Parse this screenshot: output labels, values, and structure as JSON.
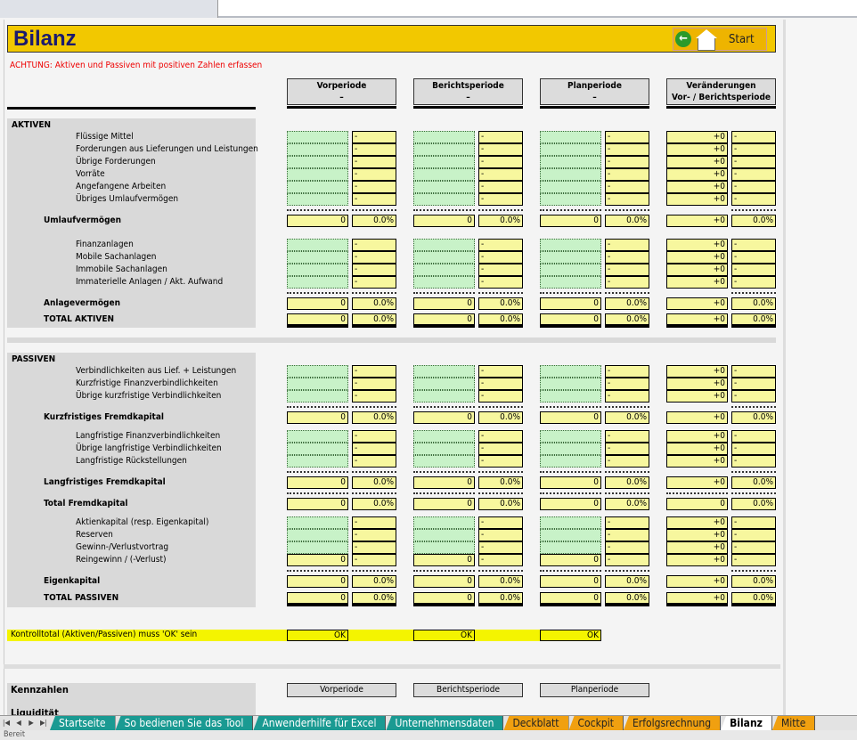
{
  "title": "Bilanz",
  "start_button": "Start",
  "warning": "ACHTUNG: Aktiven und Passiven mit positiven Zahlen erfassen",
  "columns": [
    {
      "line1": "Vorperiode",
      "line2": "–"
    },
    {
      "line1": "Berichtsperiode",
      "line2": "–"
    },
    {
      "line1": "Planperiode",
      "line2": "–"
    },
    {
      "line1": "Veränderungen",
      "line2": "Vor- / Berichtsperiode"
    }
  ],
  "rows": [
    {
      "label": "AKTIVEN",
      "type": "sec"
    },
    {
      "label": "Flüssige Mittel",
      "type": "item",
      "cols": [
        [
          "",
          "-"
        ],
        [
          "",
          "-"
        ],
        [
          "",
          "-"
        ],
        [
          "+0",
          "-"
        ]
      ]
    },
    {
      "label": "Forderungen aus Lieferungen und Leistungen",
      "type": "item",
      "cols": [
        [
          "",
          "-"
        ],
        [
          "",
          "-"
        ],
        [
          "",
          "-"
        ],
        [
          "+0",
          "-"
        ]
      ]
    },
    {
      "label": "Übrige Forderungen",
      "type": "item",
      "cols": [
        [
          "",
          "-"
        ],
        [
          "",
          "-"
        ],
        [
          "",
          "-"
        ],
        [
          "+0",
          "-"
        ]
      ]
    },
    {
      "label": "Vorräte",
      "type": "item",
      "cols": [
        [
          "",
          "-"
        ],
        [
          "",
          "-"
        ],
        [
          "",
          "-"
        ],
        [
          "+0",
          "-"
        ]
      ]
    },
    {
      "label": "Angefangene Arbeiten",
      "type": "item",
      "cols": [
        [
          "",
          "-"
        ],
        [
          "",
          "-"
        ],
        [
          "",
          "-"
        ],
        [
          "+0",
          "-"
        ]
      ]
    },
    {
      "label": "Übriges Umlaufvermögen",
      "type": "item",
      "cols": [
        [
          "",
          "-"
        ],
        [
          "",
          "-"
        ],
        [
          "",
          "-"
        ],
        [
          "+0",
          "-"
        ]
      ]
    },
    {
      "label": "Umlaufvermögen",
      "type": "sub",
      "cols": [
        [
          "0",
          "0.0%"
        ],
        [
          "0",
          "0.0%"
        ],
        [
          "0",
          "0.0%"
        ],
        [
          "+0",
          "0.0%"
        ]
      ]
    },
    {
      "label": "Finanzanlagen",
      "type": "item",
      "cols": [
        [
          "",
          "-"
        ],
        [
          "",
          "-"
        ],
        [
          "",
          "-"
        ],
        [
          "+0",
          "-"
        ]
      ]
    },
    {
      "label": "Mobile Sachanlagen",
      "type": "item",
      "cols": [
        [
          "",
          "-"
        ],
        [
          "",
          "-"
        ],
        [
          "",
          "-"
        ],
        [
          "+0",
          "-"
        ]
      ]
    },
    {
      "label": "Immobile Sachanlagen",
      "type": "item",
      "cols": [
        [
          "",
          "-"
        ],
        [
          "",
          "-"
        ],
        [
          "",
          "-"
        ],
        [
          "+0",
          "-"
        ]
      ]
    },
    {
      "label": "Immaterielle Anlagen / Akt. Aufwand",
      "type": "item",
      "cols": [
        [
          "",
          "-"
        ],
        [
          "",
          "-"
        ],
        [
          "",
          "-"
        ],
        [
          "+0",
          "-"
        ]
      ]
    },
    {
      "label": "Anlagevermögen",
      "type": "sub",
      "cols": [
        [
          "0",
          "0.0%"
        ],
        [
          "0",
          "0.0%"
        ],
        [
          "0",
          "0.0%"
        ],
        [
          "+0",
          "0.0%"
        ]
      ]
    },
    {
      "label": "TOTAL AKTIVEN",
      "type": "tot",
      "cols": [
        [
          "0",
          "0.0%"
        ],
        [
          "0",
          "0.0%"
        ],
        [
          "0",
          "0.0%"
        ],
        [
          "+0",
          "0.0%"
        ]
      ]
    },
    {
      "label": "PASSIVEN",
      "type": "sec"
    },
    {
      "label": "Verbindlichkeiten aus Lief. + Leistungen",
      "type": "item",
      "cols": [
        [
          "",
          "-"
        ],
        [
          "",
          "-"
        ],
        [
          "",
          "-"
        ],
        [
          "+0",
          "-"
        ]
      ]
    },
    {
      "label": "Kurzfristige Finanzverbindlichkeiten",
      "type": "item",
      "cols": [
        [
          "",
          "-"
        ],
        [
          "",
          "-"
        ],
        [
          "",
          "-"
        ],
        [
          "+0",
          "-"
        ]
      ]
    },
    {
      "label": "Übrige kurzfristige Verbindlichkeiten",
      "type": "item",
      "cols": [
        [
          "",
          "-"
        ],
        [
          "",
          "-"
        ],
        [
          "",
          "-"
        ],
        [
          "+0",
          "-"
        ]
      ]
    },
    {
      "label": "Kurzfristiges Fremdkapital",
      "type": "sub",
      "cols": [
        [
          "0",
          "0.0%"
        ],
        [
          "0",
          "0.0%"
        ],
        [
          "0",
          "0.0%"
        ],
        [
          "+0",
          "0.0%"
        ]
      ]
    },
    {
      "label": "Langfristige Finanzverbindlichkeiten",
      "type": "item",
      "cols": [
        [
          "",
          "-"
        ],
        [
          "",
          "-"
        ],
        [
          "",
          "-"
        ],
        [
          "+0",
          "-"
        ]
      ]
    },
    {
      "label": "Übrige langfristige Verbindlichkeiten",
      "type": "item",
      "cols": [
        [
          "",
          "-"
        ],
        [
          "",
          "-"
        ],
        [
          "",
          "-"
        ],
        [
          "+0",
          "-"
        ]
      ]
    },
    {
      "label": "Langfristige Rückstellungen",
      "type": "item",
      "cols": [
        [
          "",
          "-"
        ],
        [
          "",
          "-"
        ],
        [
          "",
          "-"
        ],
        [
          "+0",
          "-"
        ]
      ]
    },
    {
      "label": "Langfristiges Fremdkapital",
      "type": "sub",
      "cols": [
        [
          "0",
          "0.0%"
        ],
        [
          "0",
          "0.0%"
        ],
        [
          "0",
          "0.0%"
        ],
        [
          "+0",
          "0.0%"
        ]
      ]
    },
    {
      "label": "Total Fremdkapital",
      "type": "sub",
      "cols": [
        [
          "0",
          "0.0%"
        ],
        [
          "0",
          "0.0%"
        ],
        [
          "0",
          "0.0%"
        ],
        [
          "0",
          "0.0%"
        ]
      ]
    },
    {
      "label": "Aktienkapital (resp. Eigenkapital)",
      "type": "item",
      "cols": [
        [
          "",
          "-"
        ],
        [
          "",
          "-"
        ],
        [
          "",
          "-"
        ],
        [
          "+0",
          "-"
        ]
      ]
    },
    {
      "label": "Reserven",
      "type": "item",
      "cols": [
        [
          "",
          "-"
        ],
        [
          "",
          "-"
        ],
        [
          "",
          "-"
        ],
        [
          "+0",
          "-"
        ]
      ]
    },
    {
      "label": "Gewinn-/Verlustvortrag",
      "type": "item",
      "cols": [
        [
          "",
          "-"
        ],
        [
          "",
          "-"
        ],
        [
          "",
          "-"
        ],
        [
          "+0",
          "-"
        ]
      ]
    },
    {
      "label": "Reingewinn / (-Verlust)",
      "type": "item",
      "cols": [
        [
          "0",
          "-"
        ],
        [
          "0",
          "-"
        ],
        [
          "0",
          "-"
        ],
        [
          "+0",
          "-"
        ]
      ]
    },
    {
      "label": "Eigenkapital",
      "type": "sub",
      "cols": [
        [
          "0",
          "0.0%"
        ],
        [
          "0",
          "0.0%"
        ],
        [
          "0",
          "0.0%"
        ],
        [
          "+0",
          "0.0%"
        ]
      ]
    },
    {
      "label": "TOTAL PASSIVEN",
      "type": "tot",
      "cols": [
        [
          "0",
          "0.0%"
        ],
        [
          "0",
          "0.0%"
        ],
        [
          "0",
          "0.0%"
        ],
        [
          "+0",
          "0.0%"
        ]
      ]
    }
  ],
  "kontroll": {
    "label": "Kontrolltotal (Aktiven/Passiven) muss 'OK' sein",
    "values": [
      "OK",
      "OK",
      "OK"
    ]
  },
  "kennzahlen": {
    "label": "Kennzahlen",
    "next_label": "Liquidität",
    "buttons": [
      "Vorperiode",
      "Berichtsperiode",
      "Planperiode"
    ]
  },
  "sheet_tabs": [
    {
      "label": "Startseite",
      "color": "teal"
    },
    {
      "label": "So bedienen Sie das Tool",
      "color": "teal"
    },
    {
      "label": "Anwenderhilfe für Excel",
      "color": "teal"
    },
    {
      "label": "Unternehmensdaten",
      "color": "teal"
    },
    {
      "label": "Deckblatt",
      "color": "orange"
    },
    {
      "label": "Cockpit",
      "color": "orange"
    },
    {
      "label": "Erfolgsrechnung",
      "color": "orange"
    },
    {
      "label": "Bilanz",
      "color": "active"
    },
    {
      "label": "Mitte",
      "color": "orange"
    }
  ],
  "status": "Bereit",
  "colors": {
    "title_bar": "#f2c800",
    "input_cell": "#c8f2c8",
    "calc_cell": "#f7f79e",
    "warning": "#e00000",
    "teal_tab": "#1a9a92",
    "orange_tab": "#f0a010"
  }
}
